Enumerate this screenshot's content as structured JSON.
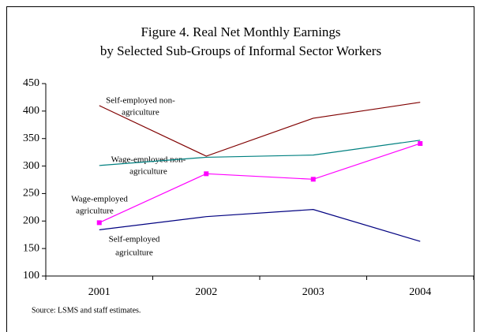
{
  "chart_data": {
    "type": "line",
    "title": [
      "Figure 4. Real Net Monthly Earnings",
      "by Selected Sub-Groups of Informal Sector Workers"
    ],
    "categories": [
      "2001",
      "2002",
      "2003",
      "2004"
    ],
    "series": [
      {
        "name": "Self-employed non-agriculture",
        "color": "#800000",
        "values": [
          410,
          318,
          387,
          416
        ]
      },
      {
        "name": "Wage-employed non-agriculture",
        "color": "#008080",
        "values": [
          301,
          316,
          320,
          347
        ]
      },
      {
        "name": "Wage-employed agriculture",
        "color": "#ff00ff",
        "marker": "square",
        "values": [
          197,
          286,
          276,
          341
        ]
      },
      {
        "name": "Self-employed agriculture",
        "color": "#000080",
        "values": [
          184,
          208,
          221,
          163
        ]
      }
    ],
    "annotations": [
      [
        "Self-employed non-",
        "agriculture"
      ],
      [
        "Wage-employed non-",
        "agriculture"
      ],
      [
        "Wage-employed",
        "agriculture"
      ],
      [
        "Self-employed",
        "agriculture"
      ]
    ],
    "source": "Source: LSMS and staff estimates.",
    "ylim": [
      100,
      450
    ],
    "yticks": [
      100,
      150,
      200,
      250,
      300,
      350,
      400,
      450
    ]
  }
}
